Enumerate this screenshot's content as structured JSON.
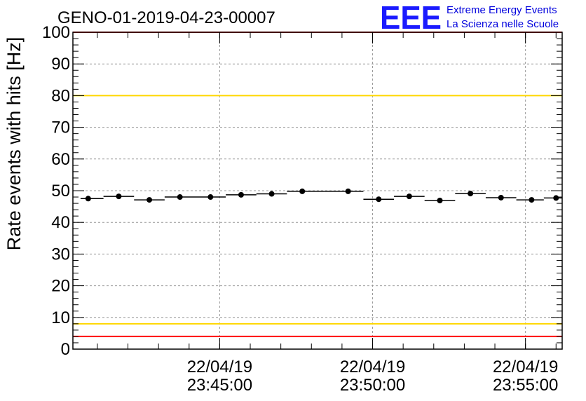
{
  "chart_data": {
    "type": "scatter",
    "title": "GENO-01-2019-04-23-00007",
    "xlabel": "",
    "ylabel": "Rate events with hits [Hz]",
    "ylim": [
      0,
      100
    ],
    "yticks": [
      0,
      10,
      20,
      30,
      40,
      50,
      60,
      70,
      80,
      90,
      100
    ],
    "x_tick_labels": [
      {
        "date": "22/04/19",
        "time": "23:45:00",
        "t_min": 4.8
      },
      {
        "date": "22/04/19",
        "time": "23:50:00",
        "t_min": 9.8
      },
      {
        "date": "22/04/19",
        "time": "23:55:00",
        "t_min": 14.8
      }
    ],
    "xlim_min": [
      0,
      16
    ],
    "grid": true,
    "series": [
      {
        "name": "Rate",
        "points": [
          {
            "t": 0.5,
            "y": 47.5
          },
          {
            "t": 1.5,
            "y": 48.2
          },
          {
            "t": 2.5,
            "y": 47.1
          },
          {
            "t": 3.5,
            "y": 48.0
          },
          {
            "t": 4.5,
            "y": 48.0
          },
          {
            "t": 5.5,
            "y": 48.7
          },
          {
            "t": 6.5,
            "y": 49.0
          },
          {
            "t": 7.5,
            "y": 49.8
          },
          {
            "t": 9.0,
            "y": 49.8
          },
          {
            "t": 10.0,
            "y": 47.3
          },
          {
            "t": 11.0,
            "y": 48.2
          },
          {
            "t": 12.0,
            "y": 46.9
          },
          {
            "t": 13.0,
            "y": 49.1
          },
          {
            "t": 14.0,
            "y": 47.8
          },
          {
            "t": 15.0,
            "y": 47.1
          },
          {
            "t": 15.8,
            "y": 47.7
          }
        ]
      }
    ],
    "reference_lines": [
      {
        "name": "upper-red",
        "y": 100,
        "color": "#ff0000"
      },
      {
        "name": "upper-yellow",
        "y": 80,
        "color": "#ffd700"
      },
      {
        "name": "lower-yellow",
        "y": 8,
        "color": "#ffd700"
      },
      {
        "name": "lower-red",
        "y": 4,
        "color": "#ff0000"
      }
    ]
  },
  "logo": {
    "mark": "EEE",
    "line1": "Extreme Energy Events",
    "line2": "La Scienza nelle Scuole",
    "color": "#1a1aff"
  }
}
